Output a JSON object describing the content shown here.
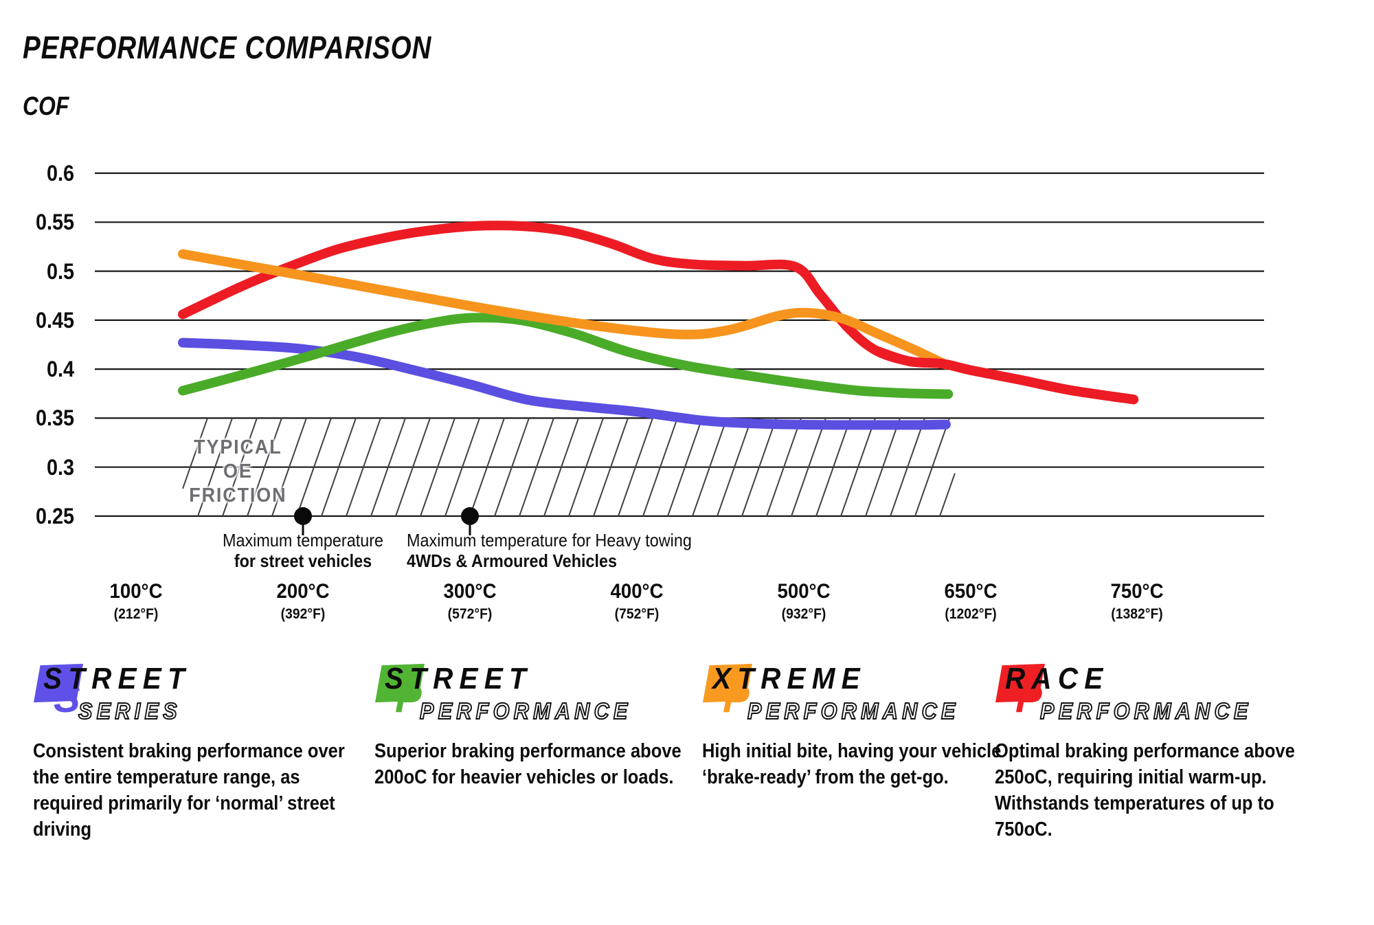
{
  "title": "PERFORMANCE COMPARISON",
  "colors": {
    "grid": "#161616",
    "hatch": "#3f4246",
    "oe_text": "#6d6e71",
    "marker_dot": "#0a0a0a",
    "street_series_blue": "#5a4fe0",
    "street_performance_green": "#4aab29",
    "xtreme_performance_orange": "#f7941d",
    "race_performance_red": "#ed1c24"
  },
  "chart_data": {
    "type": "line",
    "title": "PERFORMANCE COMPARISON",
    "ylabel": "COF",
    "ylim": [
      0.25,
      0.6
    ],
    "grid": "horizontal",
    "legend_position": "bottom",
    "y_ticks": [
      "0.6",
      "0.55",
      "0.5",
      "0.45",
      "0.4",
      "0.35",
      "0.3",
      "0.25"
    ],
    "x_ticks": [
      {
        "temp": 100,
        "c": "100°C",
        "f": "(212°F)"
      },
      {
        "temp": 200,
        "c": "200°C",
        "f": "(392°F)"
      },
      {
        "temp": 300,
        "c": "300°C",
        "f": "(572°F)"
      },
      {
        "temp": 400,
        "c": "400°C",
        "f": "(752°F)"
      },
      {
        "temp": 500,
        "c": "500°C",
        "f": "(932°F)"
      },
      {
        "temp": 650,
        "c": "650°C",
        "f": "(1202°F)"
      },
      {
        "temp": 750,
        "c": "750°C",
        "f": "(1382°F)"
      }
    ],
    "series": [
      {
        "name": "Street Series",
        "color": "#5a4fe0",
        "points": [
          [
            128,
            0.427
          ],
          [
            165,
            0.4245
          ],
          [
            200,
            0.4205
          ],
          [
            235,
            0.4115
          ],
          [
            270,
            0.3975
          ],
          [
            300,
            0.3845
          ],
          [
            335,
            0.3685
          ],
          [
            370,
            0.3615
          ],
          [
            400,
            0.3565
          ],
          [
            440,
            0.3475
          ],
          [
            475,
            0.3442
          ],
          [
            510,
            0.3432
          ],
          [
            560,
            0.343
          ],
          [
            600,
            0.343
          ],
          [
            628,
            0.3435
          ]
        ]
      },
      {
        "name": "Street Performance",
        "color": "#4aab29",
        "points": [
          [
            128,
            0.378
          ],
          [
            160,
            0.3925
          ],
          [
            200,
            0.4115
          ],
          [
            250,
            0.4365
          ],
          [
            285,
            0.4495
          ],
          [
            308,
            0.4525
          ],
          [
            332,
            0.4495
          ],
          [
            362,
            0.4365
          ],
          [
            395,
            0.4175
          ],
          [
            430,
            0.4035
          ],
          [
            470,
            0.3925
          ],
          [
            510,
            0.3835
          ],
          [
            550,
            0.378
          ],
          [
            590,
            0.3755
          ],
          [
            630,
            0.3745
          ]
        ]
      },
      {
        "name": "Xtreme Performance",
        "color": "#f7941d",
        "points": [
          [
            128,
            0.5175
          ],
          [
            200,
            0.4955
          ],
          [
            300,
            0.4645
          ],
          [
            370,
            0.4455
          ],
          [
            425,
            0.4355
          ],
          [
            455,
            0.44
          ],
          [
            485,
            0.4545
          ],
          [
            505,
            0.4575
          ],
          [
            535,
            0.4515
          ],
          [
            565,
            0.437
          ],
          [
            600,
            0.4195
          ],
          [
            628,
            0.4045
          ]
        ]
      },
      {
        "name": "Race Performance",
        "color": "#ed1c24",
        "points": [
          [
            128,
            0.456
          ],
          [
            160,
            0.482
          ],
          [
            185,
            0.5
          ],
          [
            220,
            0.522
          ],
          [
            255,
            0.536
          ],
          [
            285,
            0.5435
          ],
          [
            310,
            0.5465
          ],
          [
            335,
            0.5455
          ],
          [
            360,
            0.54
          ],
          [
            385,
            0.528
          ],
          [
            410,
            0.5125
          ],
          [
            435,
            0.5068
          ],
          [
            465,
            0.5055
          ],
          [
            495,
            0.5045
          ],
          [
            515,
            0.476
          ],
          [
            540,
            0.442
          ],
          [
            565,
            0.419
          ],
          [
            595,
            0.408
          ],
          [
            625,
            0.4055
          ],
          [
            650,
            0.399
          ],
          [
            680,
            0.389
          ],
          [
            710,
            0.3785
          ],
          [
            748,
            0.369
          ]
        ]
      }
    ],
    "overlay_series": "Race Performance",
    "overlay_from_temp": 565,
    "oe_band": {
      "label_line1": "TYPICAL OE",
      "label_line2": "FRICTION",
      "cof_min": 0.25,
      "cof_max": 0.35,
      "temp_min": 128,
      "temp_max": 636
    },
    "markers": [
      {
        "temp": 200,
        "cof": 0.25,
        "line1": "Maximum temperature",
        "line2": "for street vehicles"
      },
      {
        "temp": 300,
        "cof": 0.25,
        "line1": "Maximum temperature for Heavy towing",
        "line2": "4WDs & Armoured Vehicles"
      }
    ]
  },
  "legend": [
    {
      "word1": "STREET",
      "word2": "SERIES",
      "initial": "S",
      "color": "#5f51e8",
      "description": "Consistent braking performance over the entire temperature range, as required primarily for ‘normal’ street driving"
    },
    {
      "word1": "STREET",
      "word2": "PERFORMANCE",
      "initial": "P",
      "color": "#52b434",
      "description": "Superior braking performance above 200oC for heavier vehicles or loads."
    },
    {
      "word1": "XTREME",
      "word2": "PERFORMANCE",
      "initial": "P",
      "color": "#f79a1f",
      "description": "High initial bite, having your vehicle ‘brake-ready’ from the get-go."
    },
    {
      "word1": "RACE",
      "word2": "PERFORMANCE",
      "initial": "P",
      "color": "#ee2024",
      "description": "Optimal braking performance above 250oC, requiring initial warm-up. Withstands temperatures of up to 750oC."
    }
  ]
}
